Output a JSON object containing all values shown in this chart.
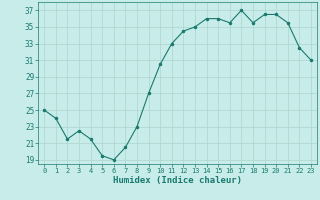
{
  "x": [
    0,
    1,
    2,
    3,
    4,
    5,
    6,
    7,
    8,
    9,
    10,
    11,
    12,
    13,
    14,
    15,
    16,
    17,
    18,
    19,
    20,
    21,
    22,
    23
  ],
  "y": [
    25,
    24,
    21.5,
    22.5,
    21.5,
    19.5,
    19,
    20.5,
    23,
    27,
    30.5,
    33,
    34.5,
    35,
    36,
    36,
    35.5,
    37,
    35.5,
    36.5,
    36.5,
    35.5,
    32.5,
    31
  ],
  "line_color": "#1a7a6e",
  "marker_color": "#1a7a6e",
  "bg_color": "#c8ecea",
  "grid_color": "#aed4d0",
  "xlabel": "Humidex (Indice chaleur)",
  "ylim": [
    18.5,
    38
  ],
  "xlim": [
    -0.5,
    23.5
  ],
  "yticks": [
    19,
    21,
    23,
    25,
    27,
    29,
    31,
    33,
    35,
    37
  ],
  "xticks": [
    0,
    1,
    2,
    3,
    4,
    5,
    6,
    7,
    8,
    9,
    10,
    11,
    12,
    13,
    14,
    15,
    16,
    17,
    18,
    19,
    20,
    21,
    22,
    23
  ],
  "font_color": "#1a7a6e"
}
